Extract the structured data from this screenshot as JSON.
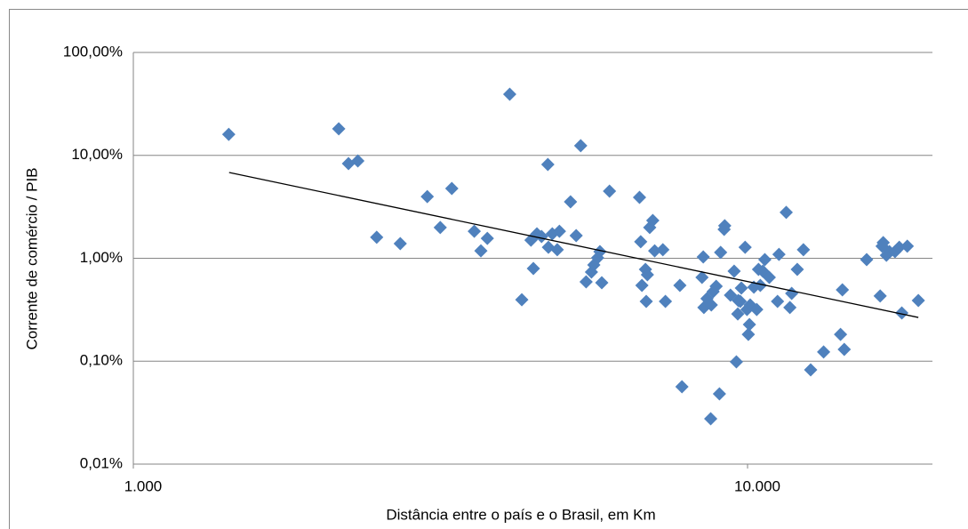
{
  "chart_data": {
    "type": "scatter",
    "x_label": "Distância entre o país e o Brasil, em Km",
    "y_label": "Corrente de comércio / PIB",
    "log_x": true,
    "log_y": true,
    "grid": true,
    "xlim": [
      1000,
      20000
    ],
    "xticks": [
      {
        "value": 1000,
        "label": "1.000"
      },
      {
        "value": 10000,
        "label": "10.000"
      }
    ],
    "ylim": [
      0.01,
      100
    ],
    "yticks": [
      {
        "value": 0.01,
        "label": "0,01%"
      },
      {
        "value": 0.1,
        "label": "0,10%"
      },
      {
        "value": 1,
        "label": "1,00%"
      },
      {
        "value": 10,
        "label": "10,00%"
      },
      {
        "value": 100,
        "label": "100,00%"
      }
    ],
    "series": [
      {
        "color": "#4f81bd",
        "x": [
          1430,
          2160,
          2240,
          2320,
          2490,
          2720,
          3010,
          3160,
          3300,
          3590,
          3680,
          3770,
          4100,
          4290,
          4440,
          4480,
          4540,
          4620,
          4730,
          4740,
          4810,
          4900,
          4940,
          5150,
          5260,
          5350,
          5460,
          5570,
          5620,
          5700,
          5750,
          5790,
          5960,
          6670,
          6700,
          6730,
          6820,
          6840,
          6870,
          6930,
          7010,
          7060,
          7280,
          7350,
          7760,
          7820,
          8430,
          8470,
          8490,
          8590,
          8710,
          8730,
          8790,
          8890,
          9000,
          9040,
          9160,
          9180,
          9380,
          9510,
          9590,
          9640,
          9660,
          9730,
          9770,
          9910,
          9980,
          10030,
          10070,
          10100,
          10240,
          10350,
          10420,
          10490,
          10590,
          10670,
          10850,
          11190,
          11250,
          11560,
          11720,
          11800,
          12050,
          12330,
          12670,
          13300,
          14170,
          14270,
          14370,
          15630,
          16440,
          16560,
          16630,
          16830,
          17020,
          17380,
          17660,
          17830,
          18200,
          18970
        ],
        "values": [
          16.0,
          18.1,
          8.32,
          8.83,
          1.6,
          1.39,
          3.98,
          1.99,
          4.77,
          1.83,
          1.18,
          1.56,
          39.3,
          0.396,
          1.5,
          0.796,
          1.73,
          1.63,
          8.15,
          1.28,
          1.73,
          1.21,
          1.83,
          3.54,
          1.66,
          12.4,
          0.59,
          0.735,
          0.861,
          1.01,
          1.16,
          0.578,
          4.49,
          3.91,
          1.45,
          0.545,
          0.78,
          0.381,
          0.692,
          1.99,
          2.33,
          1.18,
          1.21,
          0.381,
          0.545,
          0.0565,
          0.652,
          1.03,
          0.332,
          0.405,
          0.0276,
          0.352,
          0.474,
          0.535,
          0.0481,
          1.14,
          1.91,
          2.07,
          0.438,
          0.75,
          0.0986,
          0.288,
          0.389,
          0.381,
          0.514,
          1.28,
          0.318,
          0.182,
          0.227,
          0.352,
          0.524,
          0.318,
          0.78,
          0.545,
          0.75,
          0.97,
          0.652,
          0.381,
          1.09,
          2.79,
          0.332,
          0.456,
          0.78,
          1.21,
          0.0824,
          0.123,
          0.182,
          0.493,
          0.13,
          0.97,
          0.43,
          1.31,
          1.42,
          1.07,
          1.16,
          1.16,
          1.28,
          0.294,
          1.31,
          0.389
        ]
      }
    ],
    "trendline": {
      "color": "#000000",
      "x": [
        1432,
        18970
      ],
      "y": [
        6.82,
        0.266
      ]
    }
  }
}
